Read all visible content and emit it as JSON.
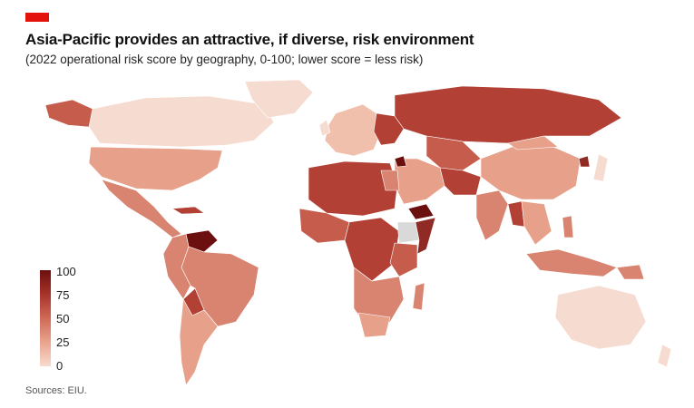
{
  "header": {
    "title": "Asia-Pacific provides an attractive, if diverse, risk environment",
    "subtitle": "(2022 operational risk score by geography, 0-100; lower score = less risk)"
  },
  "legend": {
    "labels": [
      "100",
      "75",
      "50",
      "25",
      "0"
    ],
    "colors": [
      "#6b0f0f",
      "#a8332b",
      "#cf6a56",
      "#e9a48e",
      "#f7dbcf"
    ]
  },
  "map": {
    "scale_colors": {
      "very_low": "#f6dcd0",
      "low": "#f0c0ad",
      "medium_low": "#e7a08a",
      "medium": "#d88470",
      "medium_high": "#c65c4b",
      "high": "#b24035",
      "very_high": "#8f2a24",
      "extreme": "#6b0f0f",
      "no_data": "#d9d9d9"
    }
  },
  "footer": {
    "source": "Sources: EIU."
  }
}
